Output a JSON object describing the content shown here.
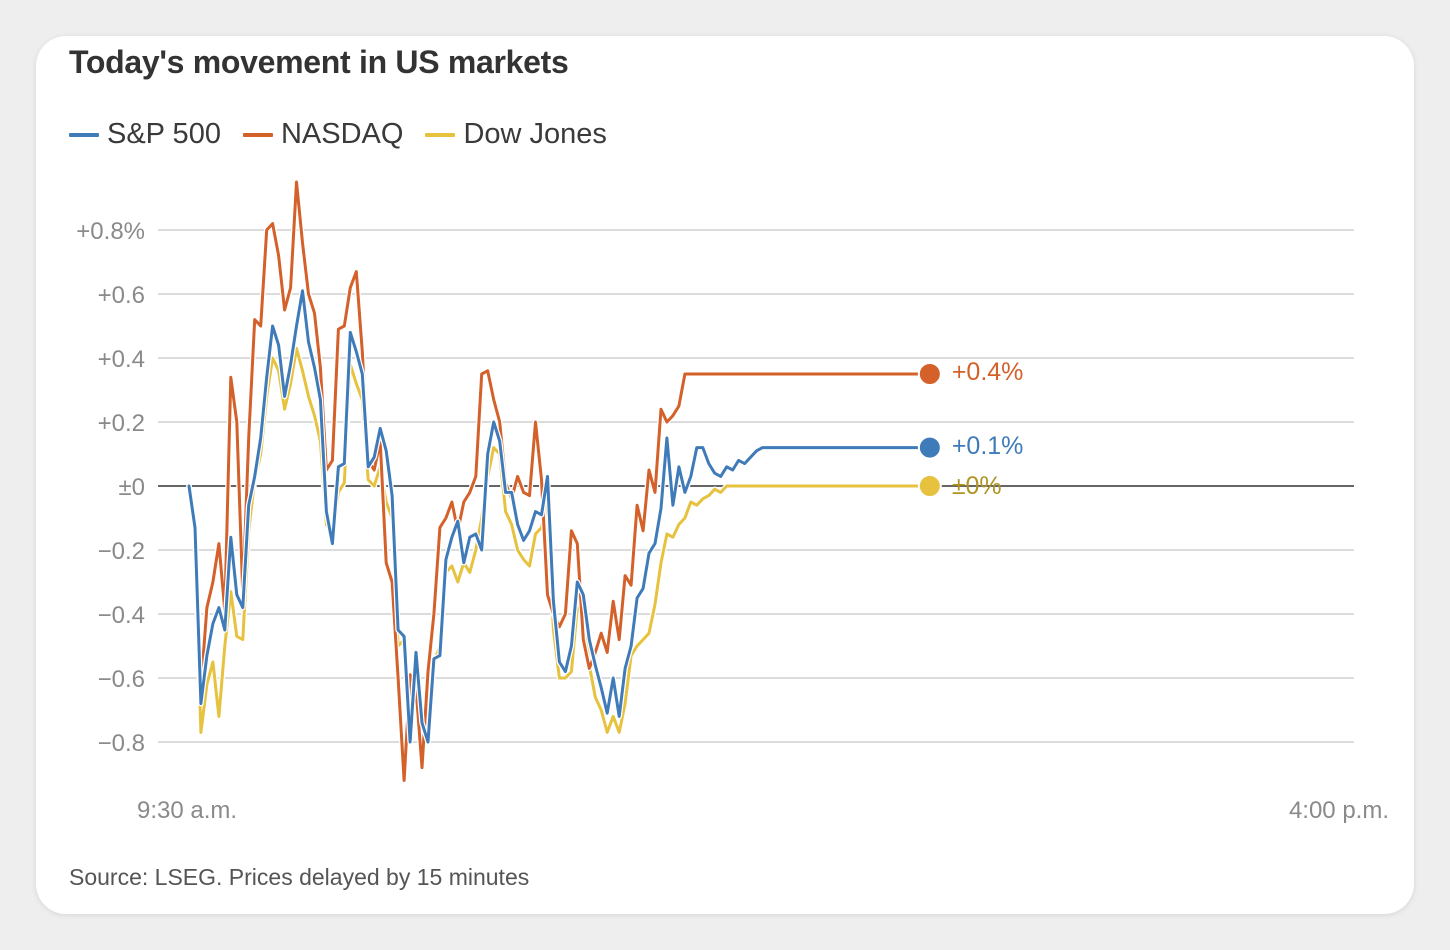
{
  "title": "Today's movement in US markets",
  "source": "Source: LSEG. Prices delayed by 15 minutes",
  "colors": {
    "sp500": "#3f7bb9",
    "nasdaq": "#d4602a",
    "dow": "#e6c23f"
  },
  "chart_data": {
    "type": "line",
    "title": "Today's movement in US markets",
    "xlabel": "",
    "ylabel": "",
    "x_tick_labels": [
      "9:30 a.m.",
      "4:00 p.m."
    ],
    "xlim_minutes_after_open": [
      0,
      390
    ],
    "ylim": [
      -0.9,
      0.85
    ],
    "y_ticks": [
      0.8,
      0.6,
      0.4,
      0.2,
      0,
      -0.2,
      -0.4,
      -0.6,
      -0.8
    ],
    "y_tick_labels": [
      "+0.8%",
      "+0.6",
      "+0.4",
      "+0.2",
      "±0",
      "−0.2",
      "−0.4",
      "−0.6",
      "−0.8"
    ],
    "grid": true,
    "legend_position": "top-left",
    "series": [
      {
        "name": "S&P 500",
        "color": "#3f7bb9",
        "end_label": "+0.1%",
        "x": [
          0,
          2,
          4,
          6,
          8,
          10,
          12,
          14,
          16,
          18,
          20,
          22,
          24,
          26,
          28,
          30,
          32,
          34,
          36,
          38,
          40,
          42,
          44,
          46,
          48,
          50,
          52,
          54,
          56,
          58,
          60,
          62,
          64,
          66,
          68,
          70,
          72,
          74,
          76,
          78,
          80,
          82,
          84,
          86,
          88,
          90,
          92,
          94,
          96,
          98,
          100,
          102,
          104,
          106,
          108,
          110,
          112,
          114,
          116,
          118,
          120,
          122,
          124,
          126,
          128,
          130,
          132,
          134,
          136,
          138,
          140,
          142,
          144,
          146,
          148,
          150,
          152,
          154,
          156,
          158,
          160,
          162,
          164,
          166,
          168,
          170,
          172,
          174,
          176,
          178,
          180,
          182,
          184,
          186,
          188,
          190,
          192,
          194,
          196,
          198,
          200,
          202,
          204,
          206,
          208,
          210,
          212,
          214,
          216,
          218,
          220,
          222,
          224,
          226,
          228,
          230,
          232,
          234,
          236,
          238,
          240,
          242,
          244,
          246,
          248
        ],
        "values": [
          0,
          -0.13,
          -0.68,
          -0.53,
          -0.43,
          -0.38,
          -0.45,
          -0.16,
          -0.34,
          -0.38,
          -0.06,
          0.03,
          0.15,
          0.34,
          0.5,
          0.44,
          0.28,
          0.38,
          0.5,
          0.61,
          0.45,
          0.37,
          0.27,
          -0.08,
          -0.18,
          0.06,
          0.07,
          0.48,
          0.42,
          0.35,
          0.06,
          0.09,
          0.18,
          0.11,
          -0.03,
          -0.45,
          -0.47,
          -0.8,
          -0.52,
          -0.74,
          -0.8,
          -0.54,
          -0.53,
          -0.23,
          -0.16,
          -0.11,
          -0.24,
          -0.16,
          -0.15,
          -0.2,
          0.1,
          0.2,
          0.14,
          -0.02,
          -0.02,
          -0.12,
          -0.17,
          -0.14,
          -0.08,
          -0.09,
          0.03,
          -0.36,
          -0.55,
          -0.58,
          -0.5,
          -0.3,
          -0.34,
          -0.48,
          -0.56,
          -0.63,
          -0.71,
          -0.6,
          -0.72,
          -0.57,
          -0.5,
          -0.35,
          -0.32,
          -0.21,
          -0.18,
          -0.07,
          0.15,
          -0.06,
          0.06,
          -0.02,
          0.03,
          0.12,
          0.12,
          0.07,
          0.04,
          0.03,
          0.06,
          0.05,
          0.08,
          0.07,
          0.09,
          0.11,
          0.12,
          0.12,
          0.12,
          0.12,
          0.12,
          0.12,
          0.12,
          0.12,
          0.12,
          0.12,
          0.12,
          0.12,
          0.12,
          0.12,
          0.12,
          0.12,
          0.12,
          0.12,
          0.12,
          0.12,
          0.12,
          0.12,
          0.12,
          0.12,
          0.12,
          0.12,
          0.12,
          0.12,
          0.12
        ]
      },
      {
        "name": "NASDAQ",
        "color": "#d4602a",
        "end_label": "+0.4%",
        "x": [
          0,
          2,
          4,
          6,
          8,
          10,
          12,
          14,
          16,
          18,
          20,
          22,
          24,
          26,
          28,
          30,
          32,
          34,
          36,
          38,
          40,
          42,
          44,
          46,
          48,
          50,
          52,
          54,
          56,
          58,
          60,
          62,
          64,
          66,
          68,
          70,
          72,
          74,
          76,
          78,
          80,
          82,
          84,
          86,
          88,
          90,
          92,
          94,
          96,
          98,
          100,
          102,
          104,
          106,
          108,
          110,
          112,
          114,
          116,
          118,
          120,
          122,
          124,
          126,
          128,
          130,
          132,
          134,
          136,
          138,
          140,
          142,
          144,
          146,
          148,
          150,
          152,
          154,
          156,
          158,
          160,
          162,
          164,
          166,
          168,
          170,
          172,
          174,
          176,
          178,
          180,
          182,
          184,
          186,
          188,
          190,
          192,
          194,
          196,
          198,
          200,
          202,
          204,
          206,
          208,
          210,
          212,
          214,
          216,
          218,
          220,
          222,
          224,
          226,
          228,
          230,
          232,
          234,
          236,
          238,
          240,
          242,
          244,
          246,
          248
        ],
        "values": [
          0,
          -0.12,
          -0.63,
          -0.38,
          -0.3,
          -0.18,
          -0.39,
          0.34,
          0.2,
          -0.34,
          0.15,
          0.52,
          0.5,
          0.8,
          0.82,
          0.72,
          0.55,
          0.62,
          0.95,
          0.76,
          0.6,
          0.54,
          0.37,
          0.05,
          0.08,
          0.49,
          0.5,
          0.62,
          0.67,
          0.42,
          0.08,
          0.05,
          0.14,
          -0.24,
          -0.3,
          -0.6,
          -0.92,
          -0.59,
          -0.63,
          -0.88,
          -0.58,
          -0.4,
          -0.13,
          -0.1,
          -0.05,
          -0.14,
          -0.05,
          -0.02,
          0.03,
          0.35,
          0.36,
          0.27,
          0.2,
          0.01,
          -0.04,
          0.03,
          -0.02,
          -0.03,
          0.2,
          0.02,
          -0.34,
          -0.4,
          -0.44,
          -0.4,
          -0.14,
          -0.18,
          -0.48,
          -0.57,
          -0.52,
          -0.46,
          -0.52,
          -0.36,
          -0.48,
          -0.28,
          -0.31,
          -0.06,
          -0.14,
          0.05,
          -0.02,
          0.24,
          0.2,
          0.22,
          0.25,
          0.35,
          0.35,
          0.35,
          0.35,
          0.35,
          0.35,
          0.35,
          0.35,
          0.35,
          0.35,
          0.35,
          0.35,
          0.35,
          0.35,
          0.35,
          0.35,
          0.35,
          0.35,
          0.35,
          0.35,
          0.35,
          0.35,
          0.35,
          0.35,
          0.35,
          0.35,
          0.35,
          0.35,
          0.35,
          0.35,
          0.35,
          0.35,
          0.35,
          0.35,
          0.35,
          0.35,
          0.35,
          0.35,
          0.35,
          0.35,
          0.35,
          0.35
        ]
      },
      {
        "name": "Dow Jones",
        "color": "#e6c23f",
        "end_label": "±0%",
        "x": [
          0,
          2,
          4,
          6,
          8,
          10,
          12,
          14,
          16,
          18,
          20,
          22,
          24,
          26,
          28,
          30,
          32,
          34,
          36,
          38,
          40,
          42,
          44,
          46,
          48,
          50,
          52,
          54,
          56,
          58,
          60,
          62,
          64,
          66,
          68,
          70,
          72,
          74,
          76,
          78,
          80,
          82,
          84,
          86,
          88,
          90,
          92,
          94,
          96,
          98,
          100,
          102,
          104,
          106,
          108,
          110,
          112,
          114,
          116,
          118,
          120,
          122,
          124,
          126,
          128,
          130,
          132,
          134,
          136,
          138,
          140,
          142,
          144,
          146,
          148,
          150,
          152,
          154,
          156,
          158,
          160,
          162,
          164,
          166,
          168,
          170,
          172,
          174,
          176,
          178,
          180,
          182,
          184,
          186,
          188,
          190,
          192,
          194,
          196,
          198,
          200,
          202,
          204,
          206,
          208,
          210,
          212,
          214,
          216,
          218,
          220,
          222,
          224,
          226,
          228,
          230,
          232,
          234,
          236,
          238,
          240,
          242,
          244,
          246,
          248
        ],
        "values": [
          0,
          -0.15,
          -0.77,
          -0.62,
          -0.55,
          -0.72,
          -0.5,
          -0.33,
          -0.47,
          -0.48,
          -0.14,
          0.02,
          0.1,
          0.28,
          0.4,
          0.36,
          0.24,
          0.32,
          0.43,
          0.36,
          0.28,
          0.22,
          0.14,
          -0.12,
          -0.15,
          -0.02,
          0.01,
          0.38,
          0.32,
          0.27,
          0.02,
          0.0,
          0.06,
          -0.05,
          -0.1,
          -0.5,
          -0.48,
          -0.78,
          -0.6,
          -0.7,
          -0.72,
          -0.55,
          -0.5,
          -0.27,
          -0.25,
          -0.3,
          -0.24,
          -0.27,
          -0.2,
          -0.1,
          0.03,
          0.12,
          0.1,
          -0.08,
          -0.12,
          -0.2,
          -0.23,
          -0.25,
          -0.15,
          -0.13,
          -0.05,
          -0.45,
          -0.6,
          -0.6,
          -0.58,
          -0.38,
          -0.4,
          -0.56,
          -0.66,
          -0.7,
          -0.77,
          -0.72,
          -0.77,
          -0.68,
          -0.53,
          -0.5,
          -0.48,
          -0.46,
          -0.37,
          -0.24,
          -0.15,
          -0.16,
          -0.12,
          -0.1,
          -0.05,
          -0.06,
          -0.04,
          -0.03,
          -0.01,
          -0.02,
          0.0,
          0.0,
          0.0,
          0.0,
          0.0,
          0.0,
          0.0,
          0.0,
          0.0,
          0.0,
          0.0,
          0.0,
          0.0,
          0.0,
          0.0,
          0.0,
          0.0,
          0.0,
          0.0,
          0.0,
          0.0,
          0.0,
          0.0,
          0.0,
          0.0,
          0.0,
          0.0,
          0.0,
          0.0,
          0.0,
          0.0,
          0.0,
          0.0,
          0.0,
          0.0
        ]
      }
    ]
  }
}
